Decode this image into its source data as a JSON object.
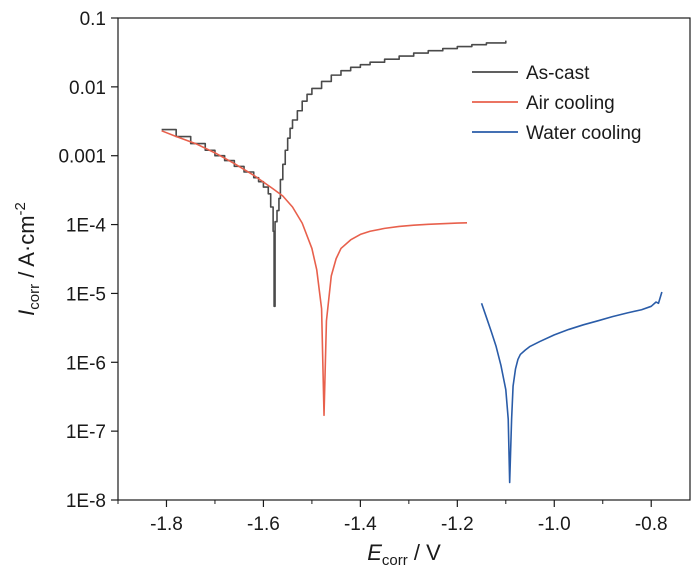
{
  "chart_data": {
    "type": "line",
    "title": "",
    "x_axis": {
      "label_main": "E",
      "label_sub": "corr",
      "label_unit": " / V",
      "range": [
        -1.9,
        -0.72
      ],
      "ticks": [
        -1.8,
        -1.6,
        -1.4,
        -1.2,
        -1.0,
        -0.8
      ],
      "tick_labels": [
        "-1.8",
        "-1.6",
        "-1.4",
        "-1.2",
        "-1.0",
        "-0.8"
      ]
    },
    "y_axis": {
      "label_main": "I",
      "label_sub": "corr",
      "label_unit": " / A·cm",
      "label_sup": "-2",
      "scale": "log",
      "range": [
        1e-08,
        0.1
      ],
      "ticks": [
        1e-08,
        1e-07,
        1e-06,
        1e-05,
        0.0001,
        0.001,
        0.01,
        0.1
      ],
      "tick_labels": [
        "1E-8",
        "1E-7",
        "1E-6",
        "1E-5",
        "1E-4",
        "0.001",
        "0.01",
        "0.1"
      ]
    },
    "grid": false,
    "legend_position": "top-right",
    "series": [
      {
        "name": "As-cast",
        "color": "#4a4a4a",
        "step": true,
        "points": [
          [
            -1.81,
            0.0024
          ],
          [
            -1.78,
            0.0019
          ],
          [
            -1.75,
            0.0015
          ],
          [
            -1.72,
            0.0012
          ],
          [
            -1.7,
            0.001
          ],
          [
            -1.68,
            0.00085
          ],
          [
            -1.66,
            0.0007
          ],
          [
            -1.64,
            0.00058
          ],
          [
            -1.62,
            0.00048
          ],
          [
            -1.61,
            0.00042
          ],
          [
            -1.6,
            0.00035
          ],
          [
            -1.59,
            0.00028
          ],
          [
            -1.585,
            0.00018
          ],
          [
            -1.58,
            8e-05
          ],
          [
            -1.578,
            6.5e-06
          ],
          [
            -1.576,
            0.00011
          ],
          [
            -1.572,
            0.00016
          ],
          [
            -1.568,
            0.00024
          ],
          [
            -1.565,
            0.00045
          ],
          [
            -1.56,
            0.00075
          ],
          [
            -1.555,
            0.0012
          ],
          [
            -1.55,
            0.0018
          ],
          [
            -1.545,
            0.0025
          ],
          [
            -1.54,
            0.0033
          ],
          [
            -1.53,
            0.0045
          ],
          [
            -1.52,
            0.0062
          ],
          [
            -1.51,
            0.0078
          ],
          [
            -1.5,
            0.0095
          ],
          [
            -1.48,
            0.012
          ],
          [
            -1.46,
            0.0148
          ],
          [
            -1.44,
            0.0172
          ],
          [
            -1.42,
            0.0192
          ],
          [
            -1.4,
            0.021
          ],
          [
            -1.38,
            0.0228
          ],
          [
            -1.35,
            0.0252
          ],
          [
            -1.32,
            0.028
          ],
          [
            -1.29,
            0.031
          ],
          [
            -1.26,
            0.0335
          ],
          [
            -1.23,
            0.036
          ],
          [
            -1.2,
            0.0385
          ],
          [
            -1.17,
            0.041
          ],
          [
            -1.14,
            0.0435
          ],
          [
            -1.1,
            0.047
          ]
        ]
      },
      {
        "name": "Air cooling",
        "color": "#e8604c",
        "step": false,
        "points": [
          [
            -1.81,
            0.0023
          ],
          [
            -1.78,
            0.0019
          ],
          [
            -1.74,
            0.0015
          ],
          [
            -1.7,
            0.0011
          ],
          [
            -1.66,
            0.00077
          ],
          [
            -1.62,
            0.00052
          ],
          [
            -1.58,
            0.00033
          ],
          [
            -1.56,
            0.00026
          ],
          [
            -1.54,
            0.00018
          ],
          [
            -1.52,
            0.000105
          ],
          [
            -1.5,
            4.5e-05
          ],
          [
            -1.49,
            2.2e-05
          ],
          [
            -1.48,
            6e-06
          ],
          [
            -1.475,
            1.7e-07
          ],
          [
            -1.47,
            4e-06
          ],
          [
            -1.46,
            1.8e-05
          ],
          [
            -1.45,
            3.2e-05
          ],
          [
            -1.44,
            4.5e-05
          ],
          [
            -1.42,
            6e-05
          ],
          [
            -1.4,
            7.2e-05
          ],
          [
            -1.38,
            8e-05
          ],
          [
            -1.35,
            8.8e-05
          ],
          [
            -1.32,
            9.4e-05
          ],
          [
            -1.29,
            9.8e-05
          ],
          [
            -1.26,
            0.000101
          ],
          [
            -1.23,
            0.000103
          ],
          [
            -1.2,
            0.000105
          ],
          [
            -1.18,
            0.000106
          ]
        ]
      },
      {
        "name": "Water cooling",
        "color": "#2a5ca8",
        "step": false,
        "points": [
          [
            -1.15,
            7.2e-06
          ],
          [
            -1.14,
            4.5e-06
          ],
          [
            -1.13,
            2.8e-06
          ],
          [
            -1.12,
            1.7e-06
          ],
          [
            -1.11,
            9e-07
          ],
          [
            -1.1,
            4e-07
          ],
          [
            -1.095,
            1.5e-07
          ],
          [
            -1.092,
            1.8e-08
          ],
          [
            -1.088,
            1.5e-07
          ],
          [
            -1.085,
            4.5e-07
          ],
          [
            -1.08,
            8e-07
          ],
          [
            -1.075,
            1.1e-06
          ],
          [
            -1.07,
            1.3e-06
          ],
          [
            -1.06,
            1.5e-06
          ],
          [
            -1.05,
            1.7e-06
          ],
          [
            -1.03,
            2e-06
          ],
          [
            -1.0,
            2.5e-06
          ],
          [
            -0.97,
            3e-06
          ],
          [
            -0.94,
            3.5e-06
          ],
          [
            -0.91,
            4e-06
          ],
          [
            -0.88,
            4.6e-06
          ],
          [
            -0.85,
            5.2e-06
          ],
          [
            -0.82,
            5.8e-06
          ],
          [
            -0.8,
            6.5e-06
          ],
          [
            -0.79,
            7.5e-06
          ],
          [
            -0.785,
            7.2e-06
          ],
          [
            -0.778,
            1.05e-05
          ]
        ]
      }
    ]
  }
}
